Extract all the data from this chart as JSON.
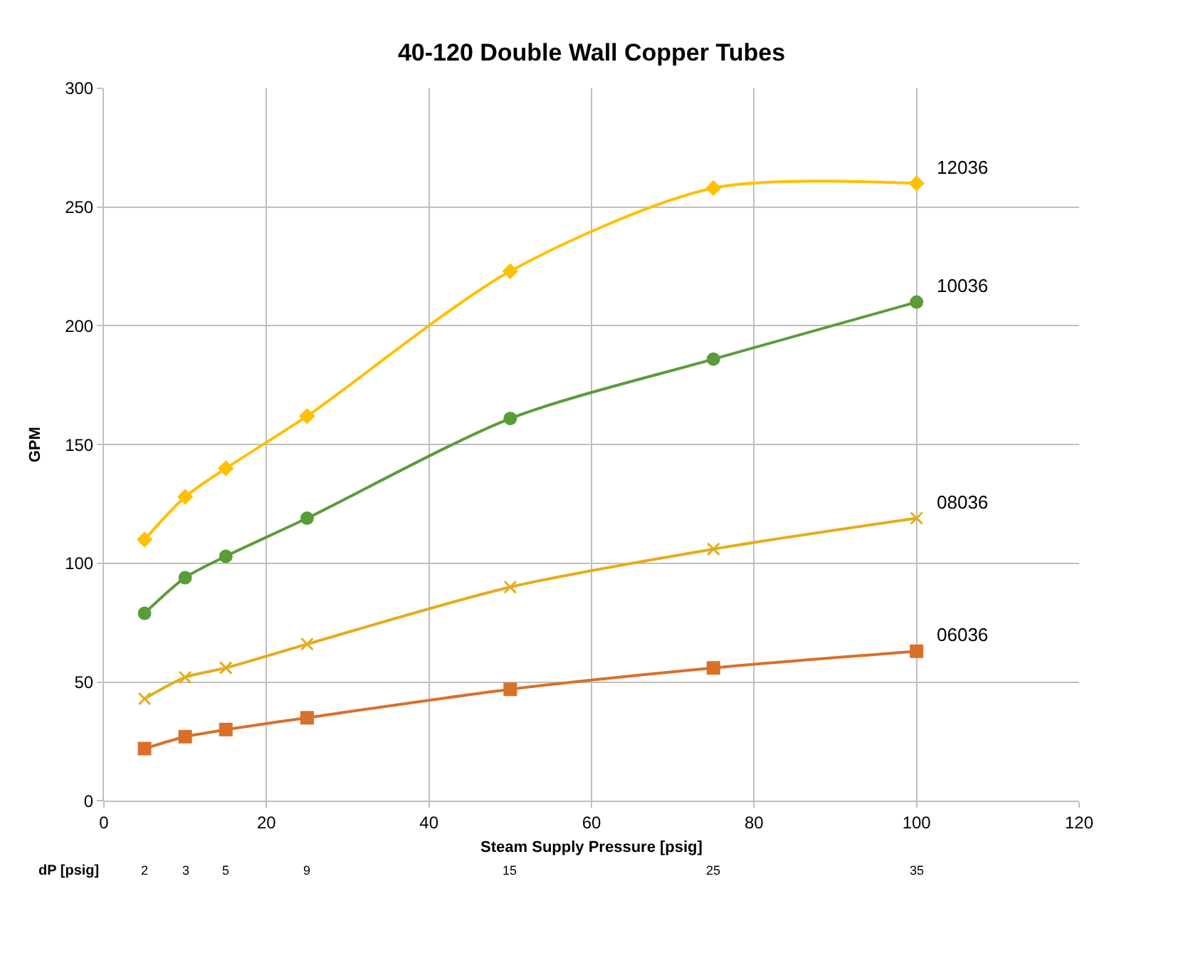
{
  "chart_data": {
    "type": "line",
    "title": "40-120 Double Wall Copper Tubes",
    "xlabel": "Steam Supply Pressure [psig]",
    "ylabel": "GPM",
    "x": [
      5,
      10,
      15,
      25,
      50,
      75,
      100
    ],
    "series": [
      {
        "name": "12036",
        "color": "#ffc000",
        "marker": "diamond",
        "values": [
          110,
          128,
          140,
          162,
          223,
          258,
          260
        ]
      },
      {
        "name": "10036",
        "color": "#5b9c3a",
        "marker": "circle",
        "values": [
          79,
          94,
          103,
          119,
          161,
          186,
          210
        ]
      },
      {
        "name": "08036",
        "color": "#e5ac1c",
        "marker": "cross",
        "values": [
          43,
          52,
          56,
          66,
          90,
          106,
          119
        ]
      },
      {
        "name": "06036",
        "color": "#d9702a",
        "marker": "square",
        "values": [
          22,
          27,
          30,
          35,
          47,
          56,
          63
        ]
      }
    ],
    "xlim": [
      0,
      120
    ],
    "xticks": [
      0,
      20,
      40,
      60,
      80,
      100,
      120
    ],
    "ylim": [
      0,
      300
    ],
    "yticks": [
      0,
      50,
      100,
      150,
      200,
      250,
      300
    ],
    "annotations": [
      "dP [psig]",
      "2",
      "3",
      "5",
      "9",
      "15",
      "25",
      "35"
    ],
    "grid": true,
    "legend": false
  }
}
